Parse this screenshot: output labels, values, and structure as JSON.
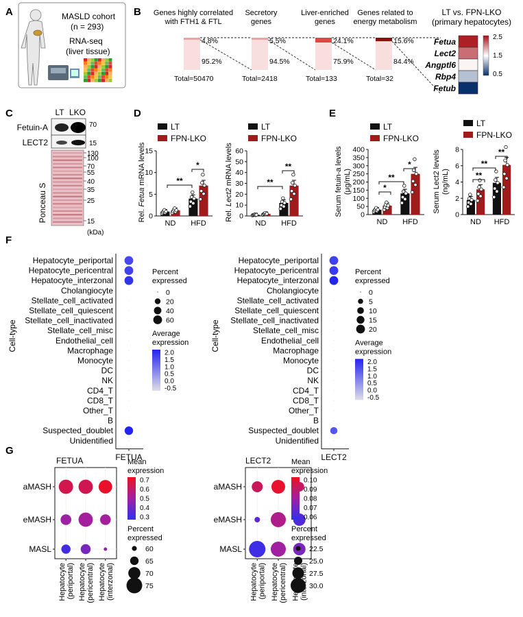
{
  "panels": {
    "A": {
      "label": "A",
      "title_lines": [
        "MASLD cohort",
        "(n = 293)",
        "RNA-seq",
        "(liver tissue)"
      ]
    },
    "B": {
      "label": "B",
      "chart_data": {
        "type": "bar",
        "stacked": true,
        "categories": [
          "Genes highly correlated with FTH1 & FTL",
          "Secretory genes",
          "Liver-enriched genes",
          "Genes related to energy metabolism"
        ],
        "series": [
          {
            "values": [
              4.8,
              5.5,
              24.1,
              15.6
            ]
          },
          {
            "values": [
              95.2,
              94.5,
              75.9,
              84.4
            ]
          }
        ],
        "top_labels": [
          "4.8%",
          "5.5%",
          "24.1%",
          "15.6%"
        ],
        "bottom_labels": [
          "95.2%",
          "94.5%",
          "75.9%",
          "84.4%"
        ],
        "totals": [
          "Total=50470",
          "Total=2418",
          "Total=133",
          "Total=32"
        ],
        "title_lines": [
          [
            "Genes highly correlated",
            "with FTH1 & FTL"
          ],
          [
            "Secretory",
            "genes"
          ],
          [
            "Liver-enriched",
            "genes"
          ],
          [
            "Genes related to",
            "energy metabolism"
          ]
        ]
      },
      "heatmap": {
        "type": "heatmap",
        "title_lines": [
          "LT vs. FPN-LKO",
          "(primary hepatocytes)"
        ],
        "genes": [
          "Fetua",
          "Lect2",
          "Angptl6",
          "Rbp4",
          "Fetub"
        ],
        "values": [
          2.4,
          1.9,
          1.05,
          0.85,
          0.5
        ],
        "colorbar_ticks": [
          "2.5",
          "1.5",
          "0.5"
        ],
        "colors": {
          "high": "#a50f15",
          "mid": "#ffffff",
          "low": "#08306b"
        }
      }
    },
    "C": {
      "label": "C",
      "lanes": [
        "LT",
        "LKO"
      ],
      "rows": [
        "Fetuin-A",
        "LECT2"
      ],
      "blot_markers": [
        "70",
        "15"
      ],
      "ladder": [
        "130",
        "100",
        "70",
        "55",
        "40",
        "35",
        "25",
        "15"
      ],
      "stain": "Ponceau S",
      "unit": "(kDa)"
    },
    "D": {
      "label": "D",
      "legend": [
        "LT",
        "FPN-LKO"
      ],
      "colors": {
        "LT": "#111111",
        "FPN-LKO": "#8b1a1a"
      },
      "chart_data": [
        {
          "type": "bar",
          "ylabel_prefix": "Rel. ",
          "ylabel_gene": "Fetua",
          "ylabel_suffix": " mRNA levels",
          "categories": [
            "ND",
            "HFD"
          ],
          "ylim": [
            0,
            15
          ],
          "yticks": [
            "0",
            "5",
            "10",
            "15"
          ],
          "series": [
            {
              "name": "LT",
              "values": [
                1.0,
                4.0
              ]
            },
            {
              "name": "FPN-LKO",
              "values": [
                1.3,
                7.0
              ]
            }
          ],
          "significance": [
            "**",
            "*"
          ]
        },
        {
          "type": "bar",
          "ylabel_prefix": "Rel. ",
          "ylabel_gene": "Lect2",
          "ylabel_suffix": " mRNA levels",
          "categories": [
            "ND",
            "HFD"
          ],
          "ylim": [
            0,
            60
          ],
          "yticks": [
            "0",
            "10",
            "20",
            "30",
            "40",
            "50",
            "60"
          ],
          "series": [
            {
              "name": "LT",
              "values": [
                1.0,
                12.0
              ]
            },
            {
              "name": "FPN-LKO",
              "values": [
                2.0,
                28.0
              ]
            }
          ],
          "significance": [
            "**",
            "**"
          ]
        }
      ]
    },
    "E": {
      "label": "E",
      "legend": [
        "LT",
        "FPN-LKO"
      ],
      "chart_data": [
        {
          "type": "bar",
          "ylabel": [
            "Serum fetuin-a levels",
            "(μg/mL)"
          ],
          "categories": [
            "ND",
            "HFD"
          ],
          "ylim": [
            0,
            400
          ],
          "yticks": [
            "0",
            "50",
            "100",
            "150",
            "200",
            "250",
            "300",
            "350",
            "400"
          ],
          "series": [
            {
              "name": "LT",
              "values": [
                30,
                130
              ]
            },
            {
              "name": "FPN-LKO",
              "values": [
                55,
                250
              ]
            }
          ],
          "significance": [
            "*",
            "**",
            "*"
          ]
        },
        {
          "type": "bar",
          "ylabel": [
            "Serum Lect2 levels",
            "(ng/mL)"
          ],
          "categories": [
            "ND",
            "HFD"
          ],
          "ylim": [
            0,
            8
          ],
          "yticks": [
            "0",
            "2",
            "4",
            "6",
            "8"
          ],
          "series": [
            {
              "name": "LT",
              "values": [
                1.8,
                3.9
              ]
            },
            {
              "name": "FPN-LKO",
              "values": [
                3.1,
                6.1
              ]
            }
          ],
          "significance": [
            "**",
            "**",
            "**"
          ]
        }
      ]
    },
    "F": {
      "label": "F",
      "ylabel": "Cell-type",
      "celltypes": [
        "Hepatocyte_periportal",
        "Hepatocyte_pericentral",
        "Hepatocyte_interzonal",
        "Cholangiocyte",
        "Stellate_cell_activated",
        "Stellate_cell_quiescent",
        "Stellate_cell_inactivated",
        "Stellate_cell_misc",
        "Endothelial_cell",
        "Macrophage",
        "Monocyte",
        "DC",
        "NK",
        "CD4_T",
        "CD8_T",
        "Other_T",
        "B",
        "Suspected_doublet",
        "Unidentified"
      ],
      "chart_data": [
        {
          "type": "scatter",
          "gene": "FETUA",
          "percent": [
            60,
            60,
            60,
            0,
            0,
            0,
            0,
            0,
            0,
            0,
            0,
            0,
            0,
            0,
            0,
            0,
            0,
            55,
            0
          ],
          "expression": [
            1.6,
            1.7,
            1.9,
            -0.5,
            -0.5,
            -0.5,
            -0.5,
            -0.5,
            -0.5,
            -0.5,
            -0.5,
            -0.5,
            -0.5,
            -0.5,
            -0.5,
            -0.5,
            -0.5,
            2.1,
            -0.5
          ],
          "size_legend_title": [
            "Percent",
            "expressed"
          ],
          "size_legend": [
            "0",
            "20",
            "40",
            "60"
          ],
          "color_legend_title": [
            "Average",
            "expression"
          ],
          "color_ticks": [
            "2.0",
            "1.5",
            "1.0",
            "0.5",
            "0.0",
            "-0.5"
          ]
        },
        {
          "type": "scatter",
          "gene": "LECT2",
          "percent": [
            20,
            20,
            20,
            0,
            0,
            0,
            0,
            0,
            0,
            0,
            0,
            0,
            0,
            0,
            0,
            0,
            0,
            12,
            0
          ],
          "expression": [
            1.7,
            1.8,
            2.1,
            -0.5,
            -0.5,
            -0.5,
            -0.5,
            -0.5,
            -0.5,
            -0.5,
            -0.5,
            -0.5,
            -0.5,
            -0.5,
            -0.5,
            -0.5,
            -0.5,
            1.4,
            -0.5
          ],
          "size_legend_title": [
            "Percent",
            "expressed"
          ],
          "size_legend": [
            "0",
            "5",
            "10",
            "15",
            "20"
          ],
          "color_legend_title": [
            "Average",
            "expression"
          ],
          "color_ticks": [
            "2.0",
            "1.5",
            "1.0",
            "0.5",
            "0.0",
            "-0.5"
          ]
        }
      ]
    },
    "G": {
      "label": "G",
      "stages": [
        "aMASH",
        "eMASH",
        "MASL"
      ],
      "cols": [
        [
          "Hepatocyte",
          "(periportal)"
        ],
        [
          "Hepatocyte",
          "(pericentral)"
        ],
        [
          "Hepatocyte",
          "(interzonal)"
        ]
      ],
      "chart_data": [
        {
          "type": "scatter",
          "title": "FETUA",
          "expression": [
            [
              0.67,
              0.66,
              0.74
            ],
            [
              0.5,
              0.52,
              0.52
            ],
            [
              0.3,
              0.42,
              0.46
            ]
          ],
          "percent": [
            [
              73,
              73,
              72
            ],
            [
              68,
              73,
              68
            ],
            [
              66,
              67,
              58
            ]
          ],
          "color_legend_title": [
            "Mean",
            "expression"
          ],
          "color_ticks": [
            "0.7",
            "0.6",
            "0.5",
            "0.4",
            "0.3"
          ],
          "color_range": [
            0.26,
            0.76
          ],
          "size_legend_title": [
            "Percent",
            "expressed"
          ],
          "size_legend": [
            "60",
            "65",
            "70",
            "75"
          ],
          "size_range": [
            57,
            76
          ]
        },
        {
          "type": "scatter",
          "title": "LECT2",
          "expression": [
            [
              0.095,
              0.105,
              0.094
            ],
            [
              0.062,
              0.085,
              0.06
            ],
            [
              0.056,
              0.08,
              0.07
            ]
          ],
          "percent": [
            [
              27,
              29,
              26
            ],
            [
              23,
              30,
              28
            ],
            [
              31,
              30,
              28
            ]
          ],
          "color_legend_title": [
            "Mean",
            "expression"
          ],
          "color_ticks": [
            "0.10",
            "0.09",
            "0.08",
            "0.07",
            "0.06"
          ],
          "color_range": [
            0.052,
            0.108
          ],
          "size_legend_title": [
            "Percent",
            "expressed"
          ],
          "size_legend": [
            "22.5",
            "25.0",
            "27.5",
            "30.0"
          ],
          "size_range": [
            21,
            31
          ]
        }
      ]
    }
  }
}
